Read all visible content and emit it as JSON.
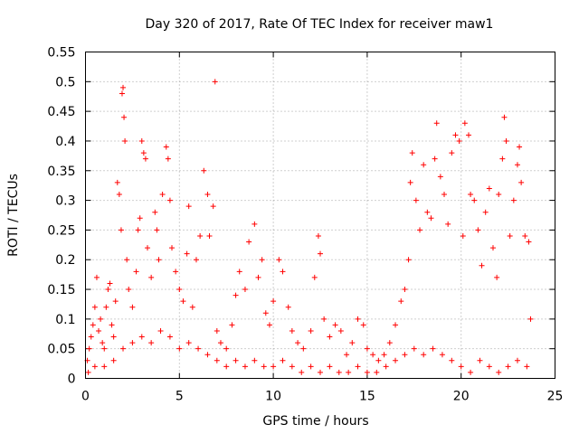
{
  "chart_data": {
    "type": "scatter",
    "title": "Day 320 of 2017, Rate Of TEC Index for receiver maw1",
    "xlabel": "GPS time / hours",
    "ylabel": "ROTI / TECUs",
    "xlim": [
      0,
      25
    ],
    "ylim": [
      0,
      0.55
    ],
    "x_ticks": [
      0,
      5,
      10,
      15,
      20,
      25
    ],
    "x_tick_labels": [
      "0",
      "5",
      "10",
      "15",
      "20",
      "25"
    ],
    "y_ticks": [
      0,
      0.05,
      0.1,
      0.15,
      0.2,
      0.25,
      0.3,
      0.35,
      0.4,
      0.45,
      0.5,
      0.55
    ],
    "y_tick_labels": [
      "0",
      "0.05",
      "0.1",
      "0.15",
      "0.2",
      "0.25",
      "0.3",
      "0.35",
      "0.4",
      "0.45",
      "0.5",
      "0.55"
    ],
    "grid": true,
    "marker": "+",
    "color": "#ff0000",
    "series": [
      {
        "points": [
          [
            0.1,
            0.03
          ],
          [
            0.2,
            0.05
          ],
          [
            0.3,
            0.07
          ],
          [
            0.4,
            0.09
          ],
          [
            0.5,
            0.12
          ],
          [
            0.6,
            0.17
          ],
          [
            0.7,
            0.08
          ],
          [
            0.8,
            0.1
          ],
          [
            0.9,
            0.06
          ],
          [
            1.0,
            0.05
          ],
          [
            1.1,
            0.12
          ],
          [
            1.2,
            0.15
          ],
          [
            1.3,
            0.16
          ],
          [
            1.4,
            0.09
          ],
          [
            1.5,
            0.07
          ],
          [
            1.6,
            0.13
          ],
          [
            1.7,
            0.33
          ],
          [
            1.8,
            0.31
          ],
          [
            1.9,
            0.25
          ],
          [
            1.95,
            0.48
          ],
          [
            2.0,
            0.49
          ],
          [
            2.05,
            0.44
          ],
          [
            2.1,
            0.4
          ],
          [
            2.2,
            0.2
          ],
          [
            2.3,
            0.15
          ],
          [
            2.5,
            0.12
          ],
          [
            2.7,
            0.18
          ],
          [
            2.8,
            0.25
          ],
          [
            2.9,
            0.27
          ],
          [
            3.0,
            0.4
          ],
          [
            3.1,
            0.38
          ],
          [
            3.2,
            0.37
          ],
          [
            3.3,
            0.22
          ],
          [
            3.5,
            0.17
          ],
          [
            3.7,
            0.28
          ],
          [
            3.8,
            0.25
          ],
          [
            3.9,
            0.2
          ],
          [
            4.1,
            0.31
          ],
          [
            4.3,
            0.39
          ],
          [
            4.4,
            0.37
          ],
          [
            4.5,
            0.3
          ],
          [
            4.6,
            0.22
          ],
          [
            4.8,
            0.18
          ],
          [
            5.0,
            0.15
          ],
          [
            5.2,
            0.13
          ],
          [
            5.4,
            0.21
          ],
          [
            5.5,
            0.29
          ],
          [
            5.7,
            0.12
          ],
          [
            5.9,
            0.2
          ],
          [
            6.1,
            0.24
          ],
          [
            6.3,
            0.35
          ],
          [
            6.5,
            0.31
          ],
          [
            6.6,
            0.24
          ],
          [
            6.8,
            0.29
          ],
          [
            6.9,
            0.5
          ],
          [
            7.0,
            0.08
          ],
          [
            7.2,
            0.06
          ],
          [
            7.5,
            0.05
          ],
          [
            7.8,
            0.09
          ],
          [
            8.0,
            0.14
          ],
          [
            8.2,
            0.18
          ],
          [
            8.5,
            0.15
          ],
          [
            8.7,
            0.23
          ],
          [
            9.0,
            0.26
          ],
          [
            9.2,
            0.17
          ],
          [
            9.4,
            0.2
          ],
          [
            9.6,
            0.11
          ],
          [
            9.8,
            0.09
          ],
          [
            10.0,
            0.13
          ],
          [
            10.3,
            0.2
          ],
          [
            10.5,
            0.18
          ],
          [
            10.8,
            0.12
          ],
          [
            11.0,
            0.08
          ],
          [
            11.3,
            0.06
          ],
          [
            11.6,
            0.05
          ],
          [
            12.0,
            0.08
          ],
          [
            12.2,
            0.17
          ],
          [
            12.4,
            0.24
          ],
          [
            12.5,
            0.21
          ],
          [
            12.7,
            0.1
          ],
          [
            13.0,
            0.07
          ],
          [
            13.3,
            0.09
          ],
          [
            13.6,
            0.08
          ],
          [
            13.9,
            0.04
          ],
          [
            14.2,
            0.06
          ],
          [
            14.5,
            0.1
          ],
          [
            14.8,
            0.09
          ],
          [
            15.0,
            0.05
          ],
          [
            15.3,
            0.04
          ],
          [
            15.6,
            0.03
          ],
          [
            15.9,
            0.04
          ],
          [
            16.2,
            0.06
          ],
          [
            16.5,
            0.09
          ],
          [
            16.8,
            0.13
          ],
          [
            17.0,
            0.15
          ],
          [
            17.2,
            0.2
          ],
          [
            17.3,
            0.33
          ],
          [
            17.4,
            0.38
          ],
          [
            17.6,
            0.3
          ],
          [
            17.8,
            0.25
          ],
          [
            18.0,
            0.36
          ],
          [
            18.2,
            0.28
          ],
          [
            18.4,
            0.27
          ],
          [
            18.6,
            0.37
          ],
          [
            18.7,
            0.43
          ],
          [
            18.9,
            0.34
          ],
          [
            19.1,
            0.31
          ],
          [
            19.3,
            0.26
          ],
          [
            19.5,
            0.38
          ],
          [
            19.7,
            0.41
          ],
          [
            19.9,
            0.4
          ],
          [
            20.1,
            0.24
          ],
          [
            20.2,
            0.43
          ],
          [
            20.4,
            0.41
          ],
          [
            20.5,
            0.31
          ],
          [
            20.7,
            0.3
          ],
          [
            20.9,
            0.25
          ],
          [
            21.1,
            0.19
          ],
          [
            21.3,
            0.28
          ],
          [
            21.5,
            0.32
          ],
          [
            21.7,
            0.22
          ],
          [
            21.9,
            0.17
          ],
          [
            22.0,
            0.31
          ],
          [
            22.2,
            0.37
          ],
          [
            22.3,
            0.44
          ],
          [
            22.4,
            0.4
          ],
          [
            22.6,
            0.24
          ],
          [
            22.8,
            0.3
          ],
          [
            23.0,
            0.36
          ],
          [
            23.1,
            0.39
          ],
          [
            23.2,
            0.33
          ],
          [
            23.4,
            0.24
          ],
          [
            23.6,
            0.23
          ],
          [
            23.7,
            0.1
          ],
          [
            0.15,
            0.01
          ],
          [
            0.5,
            0.02
          ],
          [
            1.0,
            0.02
          ],
          [
            1.5,
            0.03
          ],
          [
            2.0,
            0.05
          ],
          [
            2.5,
            0.06
          ],
          [
            3.0,
            0.07
          ],
          [
            3.5,
            0.06
          ],
          [
            4.0,
            0.08
          ],
          [
            4.5,
            0.07
          ],
          [
            5.0,
            0.05
          ],
          [
            5.5,
            0.06
          ],
          [
            6.0,
            0.05
          ],
          [
            6.5,
            0.04
          ],
          [
            7.0,
            0.03
          ],
          [
            7.5,
            0.02
          ],
          [
            8.0,
            0.03
          ],
          [
            8.5,
            0.02
          ],
          [
            9.0,
            0.03
          ],
          [
            9.5,
            0.02
          ],
          [
            10.0,
            0.02
          ],
          [
            10.5,
            0.03
          ],
          [
            11.0,
            0.02
          ],
          [
            11.5,
            0.01
          ],
          [
            12.0,
            0.02
          ],
          [
            12.5,
            0.01
          ],
          [
            13.0,
            0.02
          ],
          [
            13.5,
            0.01
          ],
          [
            14.0,
            0.01
          ],
          [
            14.5,
            0.02
          ],
          [
            15.0,
            0.01
          ],
          [
            15.5,
            0.01
          ],
          [
            16.0,
            0.02
          ],
          [
            16.5,
            0.03
          ],
          [
            17.0,
            0.04
          ],
          [
            17.5,
            0.05
          ],
          [
            18.0,
            0.04
          ],
          [
            18.5,
            0.05
          ],
          [
            19.0,
            0.04
          ],
          [
            19.5,
            0.03
          ],
          [
            20.0,
            0.02
          ],
          [
            20.5,
            0.01
          ],
          [
            21.0,
            0.03
          ],
          [
            21.5,
            0.02
          ],
          [
            22.0,
            0.01
          ],
          [
            22.5,
            0.02
          ],
          [
            23.0,
            0.03
          ],
          [
            23.5,
            0.02
          ]
        ]
      }
    ]
  }
}
